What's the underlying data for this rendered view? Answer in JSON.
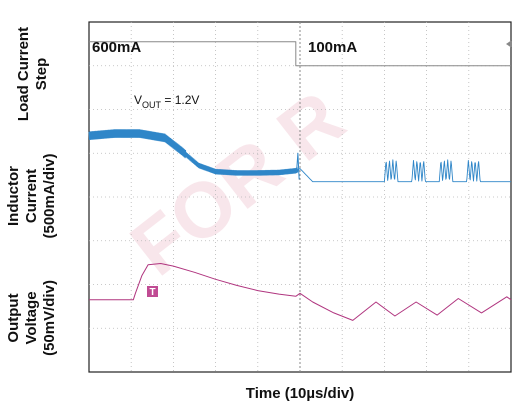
{
  "chart_data": {
    "type": "line",
    "title": "",
    "xlabel": "Time (10µs/div)",
    "x_divisions": 10,
    "y_divisions": 8,
    "grid": true,
    "y_axis_labels": [
      {
        "lines": [
          "Load Current",
          "Step"
        ]
      },
      {
        "lines": [
          "Inductor",
          "Current",
          "(500mA/div)"
        ]
      },
      {
        "lines": [
          "Output",
          "Voltage",
          "(50mV/div)"
        ]
      }
    ],
    "annotations": {
      "load_before": "600mA",
      "load_after": "100mA",
      "vout_main": "V",
      "vout_sub": "OUT",
      "vout_rest": " = 1.2V"
    },
    "watermark": "FOR R",
    "series": [
      {
        "name": "Load Current Step",
        "color": "#888888",
        "unit": "div",
        "x": [
          0,
          4.9,
          4.9,
          10
        ],
        "y": [
          7.55,
          7.55,
          7.0,
          7.0
        ]
      },
      {
        "name": "Inductor Current",
        "color": "#2f86c8",
        "unit": "div",
        "x": [
          0,
          0.6,
          1.2,
          1.8,
          2.2,
          2.6,
          3.0,
          3.5,
          4.0,
          4.5,
          4.9,
          5.0,
          5.3,
          6.0,
          6.9,
          10.0
        ],
        "y": [
          5.4,
          5.45,
          5.45,
          5.35,
          5.05,
          4.72,
          4.58,
          4.55,
          4.55,
          4.56,
          4.6,
          4.65,
          4.35,
          4.35,
          4.35,
          4.35
        ],
        "bursts_x": [
          7.0,
          7.65,
          8.3,
          8.95
        ],
        "burst_peak_div": 4.85
      },
      {
        "name": "Output Voltage",
        "color": "#b0357f",
        "unit": "div",
        "x": [
          0,
          1.05,
          1.1,
          1.25,
          1.4,
          1.7,
          2.0,
          2.5,
          3.0,
          3.5,
          4.0,
          4.5,
          4.9,
          5.0,
          5.3,
          5.8,
          6.25,
          6.8,
          7.25,
          7.75,
          8.25,
          8.75,
          9.3,
          9.9,
          10.0
        ],
        "y": [
          1.65,
          1.65,
          1.8,
          2.2,
          2.45,
          2.48,
          2.42,
          2.28,
          2.12,
          1.98,
          1.86,
          1.78,
          1.73,
          1.8,
          1.6,
          1.35,
          1.18,
          1.6,
          1.28,
          1.6,
          1.3,
          1.68,
          1.35,
          1.72,
          1.65
        ]
      }
    ],
    "trigger_marker": "T"
  }
}
